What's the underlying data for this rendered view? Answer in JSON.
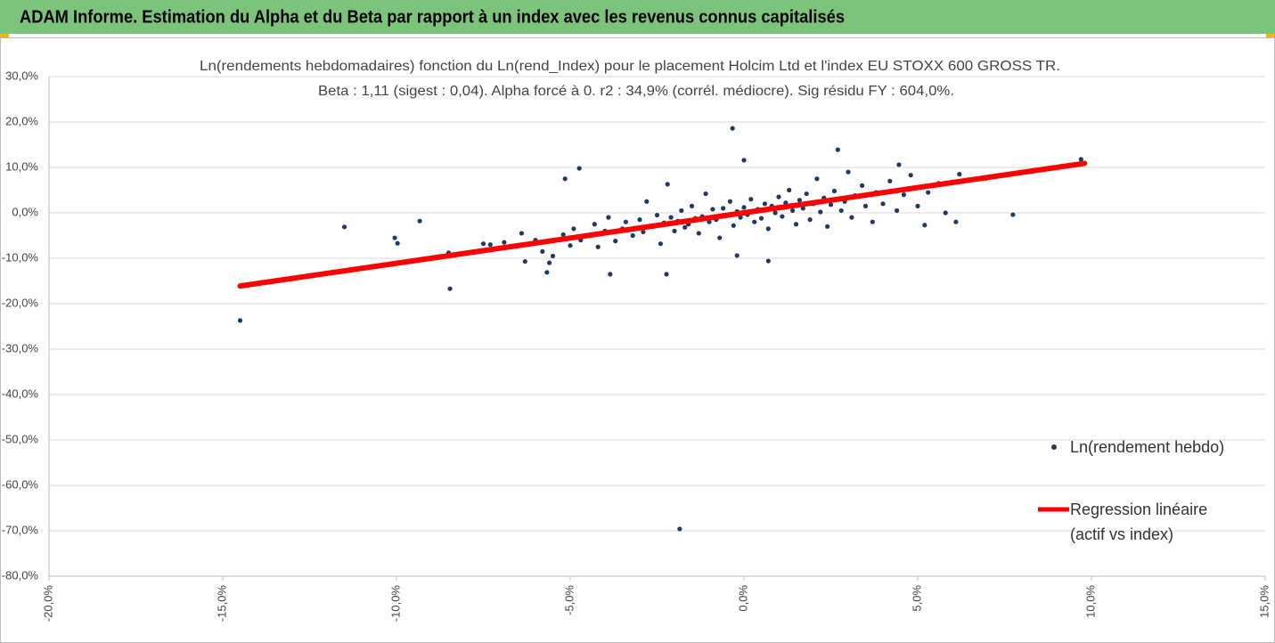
{
  "banner": {
    "title": "ADAM Informe. Estimation du Alpha et du Beta par rapport à un index avec les revenus connus capitalisés"
  },
  "chart_data": {
    "type": "scatter",
    "title": "Ln(rendements hebdomadaires) fonction du Ln(rend_Index) pour le placement Holcim Ltd et l'index EU STOXX 600 GROSS TR.",
    "subtitle": "Beta : 1,11 (sigest : 0,04). Alpha forcé à 0. r2 : 34,9% (corrél. médiocre). Sig résidu FY : 604,0%.",
    "xlim": [
      -20,
      15
    ],
    "xticks": [
      {
        "value": -20,
        "label": "-20,0%"
      },
      {
        "value": -15,
        "label": "-15,0%"
      },
      {
        "value": -10,
        "label": "-10,0%"
      },
      {
        "value": -5,
        "label": "-5,0%"
      },
      {
        "value": 0,
        "label": "0,0%"
      },
      {
        "value": 5,
        "label": "5,0%"
      },
      {
        "value": 10,
        "label": "10,0%"
      },
      {
        "value": 15,
        "label": "15,0%"
      }
    ],
    "ylim": [
      -80,
      30
    ],
    "yticks": [
      {
        "value": -80,
        "label": "-80,0%"
      },
      {
        "value": -70,
        "label": "-70,0%"
      },
      {
        "value": -60,
        "label": "-60,0%"
      },
      {
        "value": -50,
        "label": "-50,0%"
      },
      {
        "value": -40,
        "label": "-40,0%"
      },
      {
        "value": -30,
        "label": "-30,0%"
      },
      {
        "value": -20,
        "label": "-20,0%"
      },
      {
        "value": -10,
        "label": "-10,0%"
      },
      {
        "value": 0,
        "label": "0,0%"
      },
      {
        "value": 10,
        "label": "10,0%"
      },
      {
        "value": 20,
        "label": "20,0%"
      },
      {
        "value": 30,
        "label": "30,0%"
      }
    ],
    "grid": true,
    "legend": "right",
    "series": [
      {
        "name": "Ln(rendement hebdo)",
        "type": "scatter",
        "color": "#203864",
        "x": [
          -14.5,
          -14.0,
          -11.5,
          -10.05,
          -9.97,
          -9.33,
          -8.5,
          -8.46,
          -5.15,
          -4.74,
          -1.85,
          -0.33,
          9.7,
          9.7,
          7.74,
          6.97,
          8.15,
          2.7,
          6.1,
          0.0,
          -0.2,
          0.7,
          -2.23,
          -3.85,
          -5.67,
          5.2,
          4.46,
          -6.4,
          -6.3,
          -6.0,
          -5.8,
          -5.6,
          -5.5,
          -5.2,
          -5.0,
          -4.9,
          -4.7,
          -4.5,
          -4.3,
          -4.2,
          -4.0,
          -3.9,
          -3.7,
          -3.5,
          -3.4,
          -3.2,
          -3.0,
          -2.9,
          -2.8,
          -2.6,
          -2.5,
          -2.4,
          -2.3,
          -2.2,
          -2.1,
          -2.0,
          -1.9,
          -1.8,
          -1.7,
          -1.6,
          -1.5,
          -1.4,
          -1.3,
          -1.2,
          -1.1,
          -1.0,
          -0.9,
          -0.8,
          -0.7,
          -0.6,
          -0.5,
          -0.4,
          -0.3,
          -0.2,
          -0.1,
          0.0,
          0.1,
          0.2,
          0.3,
          0.4,
          0.5,
          0.6,
          0.7,
          0.8,
          0.9,
          1.0,
          1.1,
          1.2,
          1.3,
          1.4,
          1.5,
          1.6,
          1.7,
          1.8,
          1.9,
          2.0,
          2.1,
          2.2,
          2.3,
          2.4,
          2.5,
          2.6,
          2.8,
          2.9,
          3.0,
          3.1,
          3.2,
          3.4,
          3.5,
          3.7,
          3.8,
          4.0,
          4.2,
          4.4,
          4.6,
          4.8,
          5.0,
          5.3,
          5.6,
          5.8,
          6.2,
          -7.5,
          -7.3,
          -6.9,
          -8.5
        ],
        "values": [
          -23.7,
          -15.5,
          -3.1,
          -5.5,
          -6.7,
          -1.8,
          -9.2,
          -16.7,
          7.5,
          9.8,
          -69.6,
          18.6,
          11.8,
          11.0,
          -0.4,
          7.6,
          9.0,
          13.9,
          -2.0,
          11.6,
          -9.4,
          -10.6,
          -13.5,
          -13.5,
          -13.1,
          -2.7,
          10.6,
          -4.5,
          -10.7,
          -6.0,
          -8.5,
          -11.0,
          -9.5,
          -4.8,
          -7.2,
          -3.5,
          -6.0,
          -5.0,
          -2.5,
          -7.5,
          -4.0,
          -1.0,
          -6.2,
          -3.5,
          -2.0,
          -5.0,
          -1.5,
          -4.2,
          2.5,
          -3.0,
          -0.5,
          -6.8,
          -2.2,
          6.3,
          -1.0,
          -4.0,
          -1.8,
          0.5,
          -3.2,
          -2.5,
          1.5,
          -1.2,
          -4.5,
          -0.8,
          4.2,
          -2.0,
          0.8,
          -1.5,
          -5.5,
          1.0,
          -0.5,
          2.5,
          -2.8,
          0.3,
          -1.0,
          1.2,
          -0.4,
          3.0,
          -2.0,
          0.8,
          -1.2,
          2.0,
          -3.5,
          1.5,
          0.0,
          3.5,
          -0.8,
          2.2,
          5.0,
          0.5,
          -2.5,
          2.8,
          1.0,
          4.2,
          -1.5,
          2.0,
          7.5,
          0.2,
          3.3,
          -3.0,
          1.8,
          4.8,
          0.5,
          2.5,
          9.0,
          -1.0,
          3.8,
          6.0,
          1.5,
          -2.0,
          4.5,
          2.0,
          7.0,
          0.5,
          4.0,
          8.3,
          1.5,
          4.5,
          6.5,
          0.0,
          8.5,
          -6.8,
          -7.0,
          -6.5,
          -8.8
        ]
      },
      {
        "name": "Regression linéaire (actif vs index)",
        "type": "line",
        "color": "#ff0000",
        "x": [
          -14.5,
          9.8
        ],
        "values": [
          -16.1,
          10.9
        ]
      }
    ]
  }
}
